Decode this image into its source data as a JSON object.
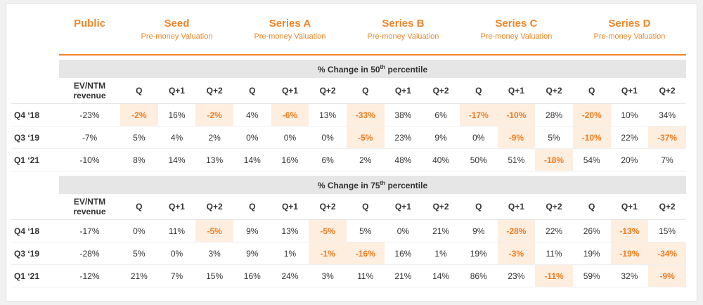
{
  "header": {
    "columns": [
      {
        "title": "Public"
      },
      {
        "title": "Seed",
        "subtitle": "Pre-money Valuation"
      },
      {
        "title": "Series A",
        "subtitle": "Pre-money Valuation"
      },
      {
        "title": "Series B",
        "subtitle": "Pre-money Valuation"
      },
      {
        "title": "Series C",
        "subtitle": "Pre-money Valuation"
      },
      {
        "title": "Series D",
        "subtitle": "Pre-money Valuation"
      }
    ],
    "subcolumns": [
      "Q",
      "Q+1",
      "Q+2"
    ]
  },
  "sections": [
    {
      "title": {
        "before": "% Change in 50",
        "sup": "th",
        "after": " percentile"
      },
      "first_column": "EV/NTM revenue",
      "rows": [
        {
          "label": "Q4 ‘18",
          "cells": [
            "-23%",
            "-2%",
            "16%",
            "-2%",
            "4%",
            "-6%",
            "13%",
            "-33%",
            "38%",
            "6%",
            "-17%",
            "-10%",
            "28%",
            "-20%",
            "10%",
            "34%"
          ]
        },
        {
          "label": "Q3 ‘19",
          "cells": [
            "-7%",
            "5%",
            "4%",
            "2%",
            "0%",
            "0%",
            "0%",
            "-5%",
            "23%",
            "9%",
            "0%",
            "-9%",
            "5%",
            "-10%",
            "22%",
            "-37%"
          ]
        },
        {
          "label": "Q1 ‘21",
          "cells": [
            "-10%",
            "8%",
            "14%",
            "13%",
            "14%",
            "16%",
            "6%",
            "2%",
            "48%",
            "40%",
            "50%",
            "51%",
            "-18%",
            "54%",
            "20%",
            "7%"
          ]
        }
      ]
    },
    {
      "title": {
        "before": "% Change in 75",
        "sup": "th",
        "after": " percentile"
      },
      "first_column": "EV/NTM revenue",
      "rows": [
        {
          "label": "Q4 ‘18",
          "cells": [
            "-17%",
            "0%",
            "11%",
            "-5%",
            "9%",
            "13%",
            "-5%",
            "5%",
            "0%",
            "21%",
            "9%",
            "-28%",
            "22%",
            "26%",
            "-13%",
            "15%"
          ]
        },
        {
          "label": "Q3 ‘19",
          "cells": [
            "-28%",
            "5%",
            "0%",
            "3%",
            "9%",
            "1%",
            "-1%",
            "-16%",
            "16%",
            "1%",
            "19%",
            "-3%",
            "11%",
            "19%",
            "-19%",
            "-34%"
          ]
        },
        {
          "label": "Q1 ‘21",
          "cells": [
            "-12%",
            "21%",
            "7%",
            "15%",
            "16%",
            "24%",
            "3%",
            "11%",
            "21%",
            "14%",
            "86%",
            "23%",
            "-11%",
            "59%",
            "32%",
            "-9%"
          ]
        }
      ]
    }
  ]
}
